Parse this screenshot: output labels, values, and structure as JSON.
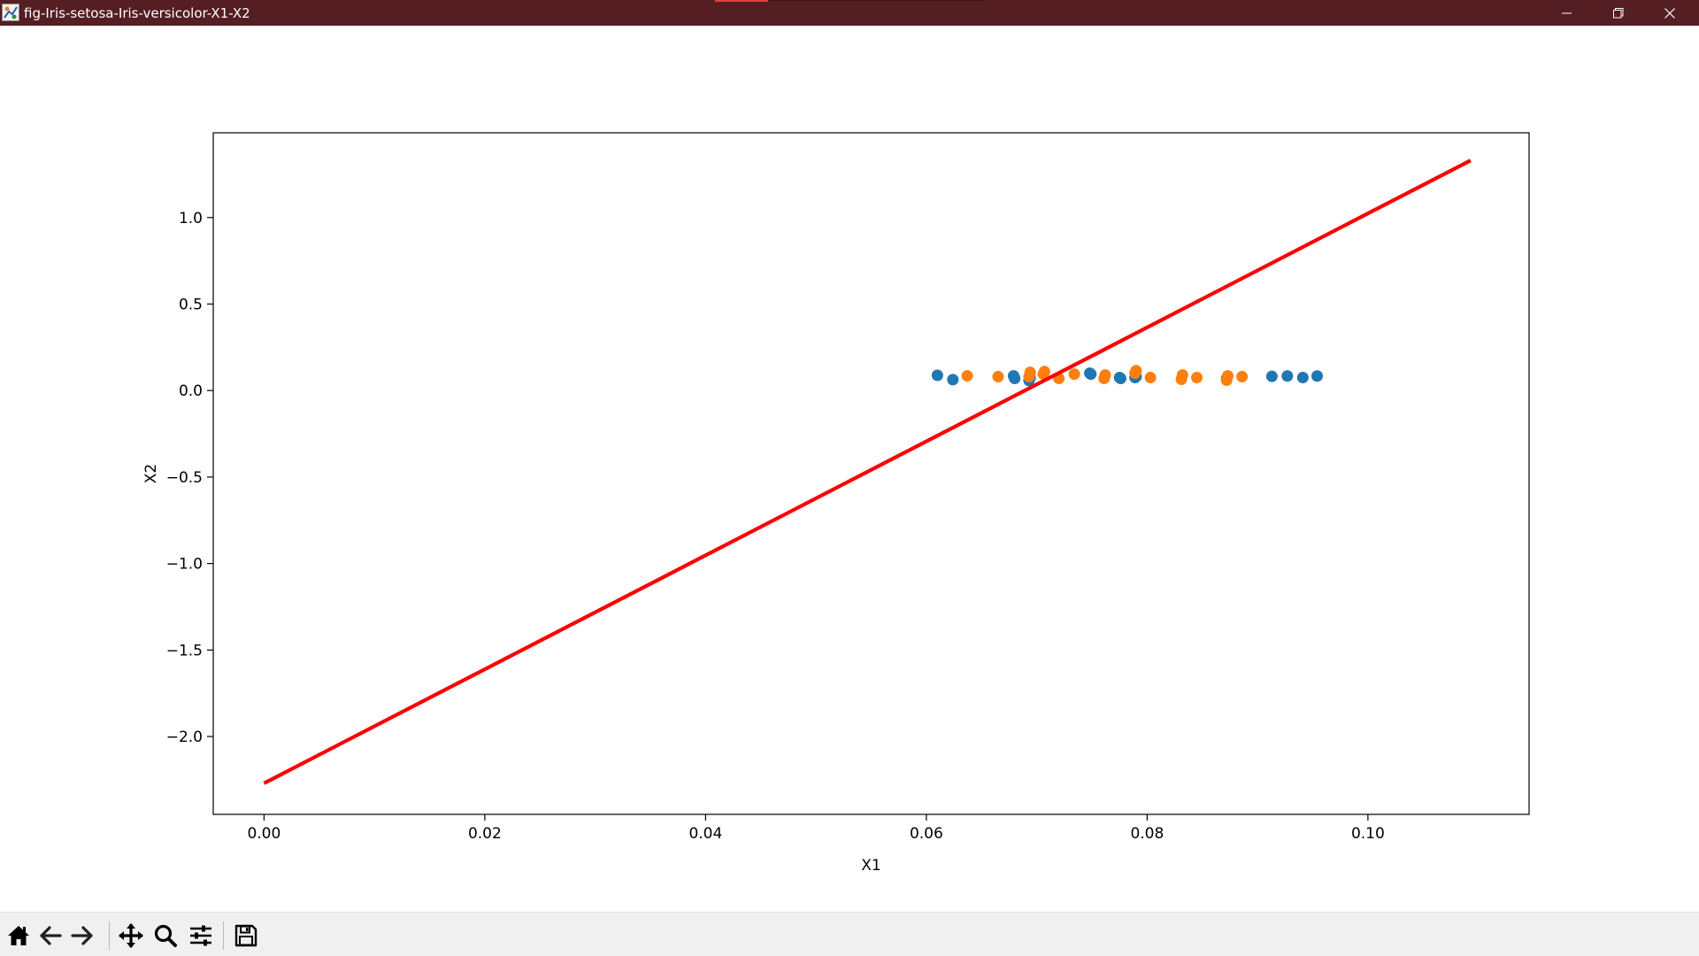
{
  "window": {
    "title": "fig-Iris-setosa-Iris-versicolor-X1-X2",
    "icons": {
      "app": "matplotlib-figure-icon",
      "minimize": "minimize-icon",
      "maximize": "restore-icon",
      "close": "close-icon"
    }
  },
  "toolbar": {
    "buttons": [
      {
        "name": "home-button",
        "icon": "home-icon"
      },
      {
        "name": "back-button",
        "icon": "arrow-left-icon"
      },
      {
        "name": "forward-button",
        "icon": "arrow-right-icon"
      },
      {
        "name": "pan-button",
        "icon": "move-icon"
      },
      {
        "name": "zoom-button",
        "icon": "magnifier-icon"
      },
      {
        "name": "configure-subplots-button",
        "icon": "sliders-icon"
      },
      {
        "name": "save-button",
        "icon": "floppy-disk-icon"
      }
    ]
  },
  "chart_data": {
    "type": "scatter",
    "title": "",
    "xlabel": "X1",
    "ylabel": "X2",
    "xlim": [
      -0.0046,
      0.1146
    ],
    "ylim": [
      -2.45,
      1.49
    ],
    "xticks": [
      0.0,
      0.02,
      0.04,
      0.06,
      0.08,
      0.1
    ],
    "xtick_labels": [
      "0.00",
      "0.02",
      "0.04",
      "0.06",
      "0.08",
      "0.10"
    ],
    "yticks": [
      1.0,
      0.5,
      0.0,
      -0.5,
      -1.0,
      -1.5,
      -2.0
    ],
    "ytick_labels": [
      "1.0",
      "0.5",
      "0.0",
      "−0.5",
      "−1.0",
      "−1.5",
      "−2.0"
    ],
    "grid": false,
    "legend": "none",
    "series": [
      {
        "color": "#1f77b4",
        "kind": "points",
        "x": [
          0.061,
          0.0624,
          0.0679,
          0.068,
          0.0693,
          0.0694,
          0.0748,
          0.0749,
          0.0775,
          0.0776,
          0.0789,
          0.079,
          0.0872,
          0.0913,
          0.0927,
          0.0941,
          0.0954
        ],
        "y": [
          0.088,
          0.063,
          0.085,
          0.07,
          0.058,
          0.075,
          0.1,
          0.095,
          0.075,
          0.07,
          0.075,
          0.08,
          0.07,
          0.082,
          0.084,
          0.075,
          0.084
        ]
      },
      {
        "color": "#ff7f0e",
        "kind": "points",
        "x": [
          0.0637,
          0.0665,
          0.0693,
          0.0694,
          0.0706,
          0.0707,
          0.072,
          0.0734,
          0.0761,
          0.0762,
          0.0789,
          0.079,
          0.0803,
          0.0831,
          0.0832,
          0.0845,
          0.0872,
          0.0873,
          0.0886
        ],
        "y": [
          0.085,
          0.08,
          0.08,
          0.105,
          0.095,
          0.11,
          0.07,
          0.095,
          0.07,
          0.09,
          0.1,
          0.115,
          0.075,
          0.065,
          0.09,
          0.075,
          0.06,
          0.085,
          0.08
        ]
      },
      {
        "color": "#ff0000",
        "kind": "line",
        "x": [
          0.0,
          0.1093
        ],
        "y": [
          -2.27,
          1.33
        ]
      }
    ]
  }
}
